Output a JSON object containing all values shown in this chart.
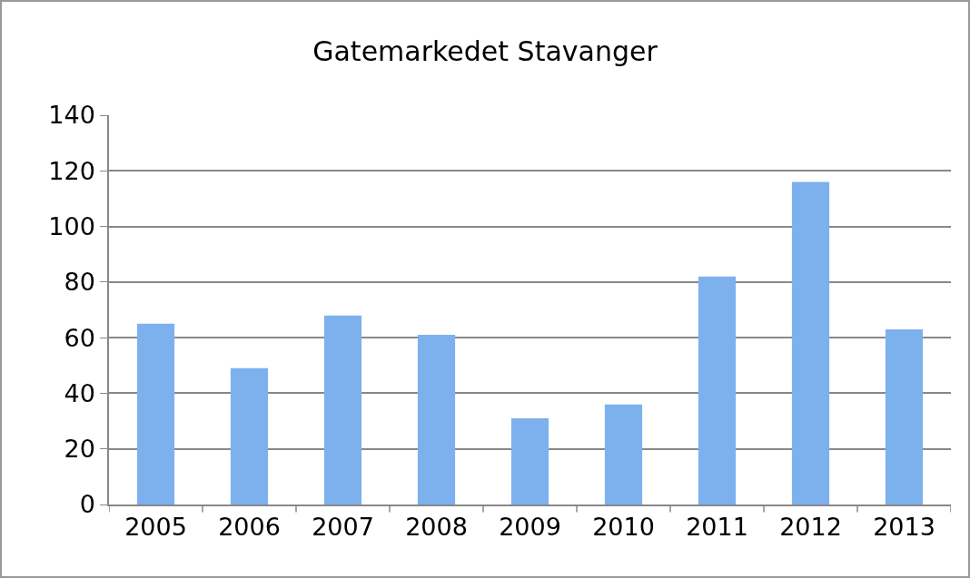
{
  "chart_data": {
    "type": "bar",
    "title": "Gatemarkedet Stavanger",
    "categories": [
      "2005",
      "2006",
      "2007",
      "2008",
      "2009",
      "2010",
      "2011",
      "2012",
      "2013"
    ],
    "values": [
      65,
      49,
      68,
      61,
      31,
      36,
      82,
      116,
      63
    ],
    "color": "#7db1ee",
    "ylim": [
      0,
      140
    ],
    "yticks": [
      0,
      20,
      40,
      60,
      80,
      100,
      120,
      140
    ],
    "grid": "y"
  }
}
